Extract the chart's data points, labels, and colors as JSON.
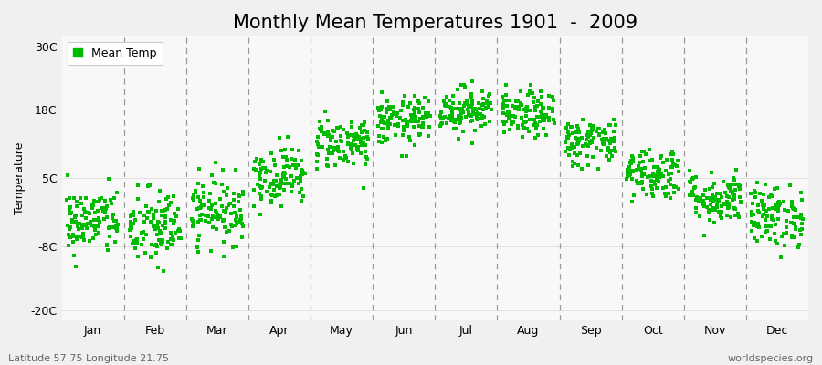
{
  "title": "Monthly Mean Temperatures 1901  -  2009",
  "ylabel": "Temperature",
  "yticks": [
    -20,
    -8,
    5,
    18,
    30
  ],
  "ytick_labels": [
    "-20C",
    "-8C",
    "5C",
    "18C",
    "30C"
  ],
  "ylim": [
    -22,
    32
  ],
  "month_labels": [
    "Jan",
    "Feb",
    "Mar",
    "Apr",
    "May",
    "Jun",
    "Jul",
    "Aug",
    "Sep",
    "Oct",
    "Nov",
    "Dec"
  ],
  "dot_color": "#00bb00",
  "legend_label": "Mean Temp",
  "footer_left": "Latitude 57.75 Longitude 21.75",
  "footer_right": "worldspecies.org",
  "background_color": "#f0f0f0",
  "plot_bg_color": "#f8f8f8",
  "mean_temps": [
    -3.2,
    -4.5,
    -1.0,
    5.5,
    11.8,
    15.8,
    18.0,
    17.0,
    12.0,
    6.0,
    1.2,
    -2.2
  ],
  "std_temps": [
    3.2,
    3.8,
    3.2,
    2.8,
    2.5,
    2.3,
    2.2,
    2.2,
    2.3,
    2.5,
    2.5,
    3.0
  ],
  "n_years": 109,
  "seed": 42,
  "title_fontsize": 15,
  "axis_fontsize": 9,
  "footer_fontsize": 8,
  "dot_size": 12,
  "jitter": 0.42
}
